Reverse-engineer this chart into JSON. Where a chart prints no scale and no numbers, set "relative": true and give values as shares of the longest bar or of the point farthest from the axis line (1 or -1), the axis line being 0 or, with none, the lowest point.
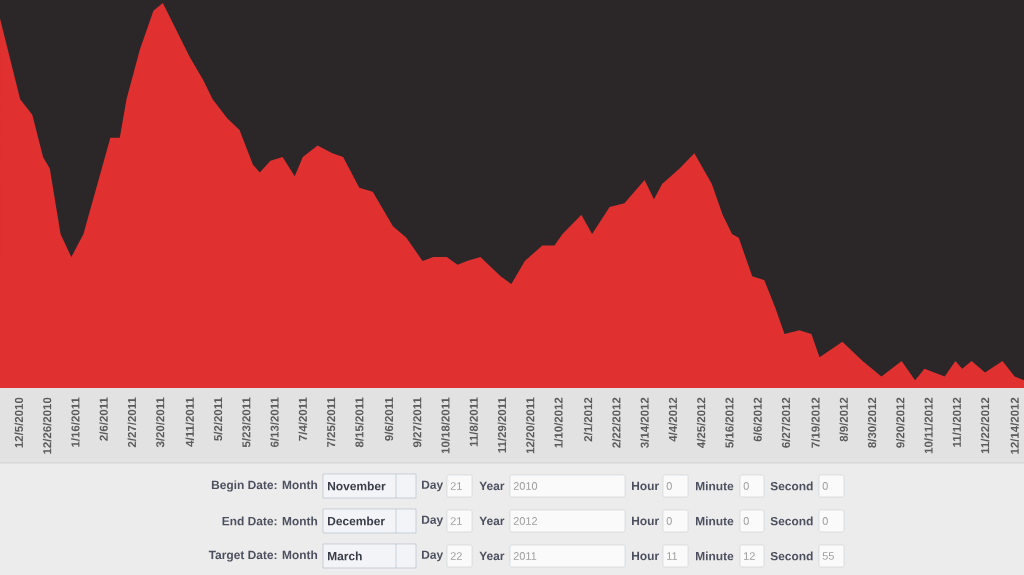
{
  "chart_data": {
    "type": "area",
    "relative": true,
    "color": "#e0302f",
    "x": [
      "2010-11-21",
      "2010-12-06",
      "2010-12-15",
      "2010-12-23",
      "2010-12-28",
      "2011-01-05",
      "2011-01-13",
      "2011-01-22",
      "2011-02-03",
      "2011-02-11",
      "2011-02-18",
      "2011-02-23",
      "2011-03-05",
      "2011-03-15",
      "2011-03-22",
      "2011-04-01",
      "2011-04-11",
      "2011-04-21",
      "2011-04-28",
      "2011-05-09",
      "2011-05-18",
      "2011-05-28",
      "2011-06-02",
      "2011-06-10",
      "2011-06-19",
      "2011-06-28",
      "2011-07-04",
      "2011-07-15",
      "2011-07-26",
      "2011-08-03",
      "2011-08-15",
      "2011-08-25",
      "2011-08-30",
      "2011-09-09",
      "2011-09-19",
      "2011-10-01",
      "2011-10-09",
      "2011-10-19",
      "2011-10-27",
      "2011-11-03",
      "2011-11-13",
      "2011-11-28",
      "2011-12-06",
      "2011-12-16",
      "2011-12-29",
      "2012-01-07",
      "2012-01-13",
      "2012-01-27",
      "2012-02-04",
      "2012-02-17",
      "2012-02-28",
      "2012-03-14",
      "2012-03-21",
      "2012-03-27",
      "2012-04-09",
      "2012-04-20",
      "2012-05-03",
      "2012-05-11",
      "2012-05-18",
      "2012-05-23",
      "2012-06-02",
      "2012-06-11",
      "2012-06-19",
      "2012-06-26",
      "2012-07-07",
      "2012-07-16",
      "2012-07-22",
      "2012-08-08",
      "2012-08-23",
      "2012-09-06",
      "2012-09-21",
      "2012-10-01",
      "2012-10-08",
      "2012-10-23",
      "2012-10-31",
      "2012-11-05",
      "2012-11-12",
      "2012-11-22",
      "2012-12-05",
      "2012-12-14",
      "2012-12-21"
    ],
    "values": [
      0.96,
      0.75,
      0.71,
      0.6,
      0.57,
      0.4,
      0.34,
      0.4,
      0.55,
      0.65,
      0.65,
      0.75,
      0.88,
      0.98,
      1,
      0.93,
      0.86,
      0.8,
      0.75,
      0.7,
      0.67,
      0.58,
      0.56,
      0.59,
      0.6,
      0.55,
      0.6,
      0.63,
      0.61,
      0.6,
      0.52,
      0.51,
      0.48,
      0.42,
      0.39,
      0.33,
      0.34,
      0.34,
      0.32,
      0.33,
      0.34,
      0.29,
      0.27,
      0.33,
      0.37,
      0.37,
      0.4,
      0.45,
      0.4,
      0.47,
      0.48,
      0.54,
      0.49,
      0.53,
      0.57,
      0.61,
      0.53,
      0.45,
      0.4,
      0.39,
      0.29,
      0.28,
      0.21,
      0.14,
      0.15,
      0.14,
      0.08,
      0.12,
      0.07,
      0.03,
      0.07,
      0.02,
      0.05,
      0.03,
      0.07,
      0.05,
      0.07,
      0.04,
      0.07,
      0.03,
      0.02
    ],
    "xlim": [
      "2010-11-21",
      "2012-12-21"
    ],
    "xticks": [
      {
        "value": "2010-12-05",
        "label": "12/5/2010"
      },
      {
        "value": "2010-12-26",
        "label": "12/26/2010"
      },
      {
        "value": "2011-01-16",
        "label": "1/16/2011"
      },
      {
        "value": "2011-02-06",
        "label": "2/6/2011"
      },
      {
        "value": "2011-02-27",
        "label": "2/27/2011"
      },
      {
        "value": "2011-03-20",
        "label": "3/20/2011"
      },
      {
        "value": "2011-04-11",
        "label": "4/11/2011"
      },
      {
        "value": "2011-05-02",
        "label": "5/2/2011"
      },
      {
        "value": "2011-05-23",
        "label": "5/23/2011"
      },
      {
        "value": "2011-06-13",
        "label": "6/13/2011"
      },
      {
        "value": "2011-07-04",
        "label": "7/4/2011"
      },
      {
        "value": "2011-07-25",
        "label": "7/25/2011"
      },
      {
        "value": "2011-08-15",
        "label": "8/15/2011"
      },
      {
        "value": "2011-09-06",
        "label": "9/6/2011"
      },
      {
        "value": "2011-09-27",
        "label": "9/27/2011"
      },
      {
        "value": "2011-10-18",
        "label": "10/18/2011"
      },
      {
        "value": "2011-11-08",
        "label": "11/8/2011"
      },
      {
        "value": "2011-11-29",
        "label": "11/29/2011"
      },
      {
        "value": "2011-12-20",
        "label": "12/20/2011"
      },
      {
        "value": "2012-01-10",
        "label": "1/10/2012"
      },
      {
        "value": "2012-02-01",
        "label": "2/1/2012"
      },
      {
        "value": "2012-02-22",
        "label": "2/22/2012"
      },
      {
        "value": "2012-03-14",
        "label": "3/14/2012"
      },
      {
        "value": "2012-04-04",
        "label": "4/4/2012"
      },
      {
        "value": "2012-04-25",
        "label": "4/25/2012"
      },
      {
        "value": "2012-05-16",
        "label": "5/16/2012"
      },
      {
        "value": "2012-06-06",
        "label": "6/6/2012"
      },
      {
        "value": "2012-06-27",
        "label": "6/27/2012"
      },
      {
        "value": "2012-07-19",
        "label": "7/19/2012"
      },
      {
        "value": "2012-08-09",
        "label": "8/9/2012"
      },
      {
        "value": "2012-08-30",
        "label": "8/30/2012"
      },
      {
        "value": "2012-09-20",
        "label": "9/20/2012"
      },
      {
        "value": "2012-10-11",
        "label": "10/11/2012"
      },
      {
        "value": "2012-11-01",
        "label": "11/1/2012"
      },
      {
        "value": "2012-11-22",
        "label": "11/22/2012"
      },
      {
        "value": "2012-12-14",
        "label": "12/14/2012"
      }
    ],
    "annotations": [
      "Begin Date: Month",
      "November",
      "Day",
      "21",
      "Year",
      "2010",
      "Hour",
      "0",
      "Minute",
      "0",
      "Second",
      "0",
      "End Date: Month",
      "December",
      "Day",
      "21",
      "Year",
      "2012",
      "Hour",
      "0",
      "Minute",
      "0",
      "Second",
      "0",
      "Target Date: Month",
      "March",
      "Day",
      "22",
      "Year",
      "2011",
      "Hour",
      "11",
      "Minute",
      "12",
      "Second",
      "55"
    ]
  }
}
